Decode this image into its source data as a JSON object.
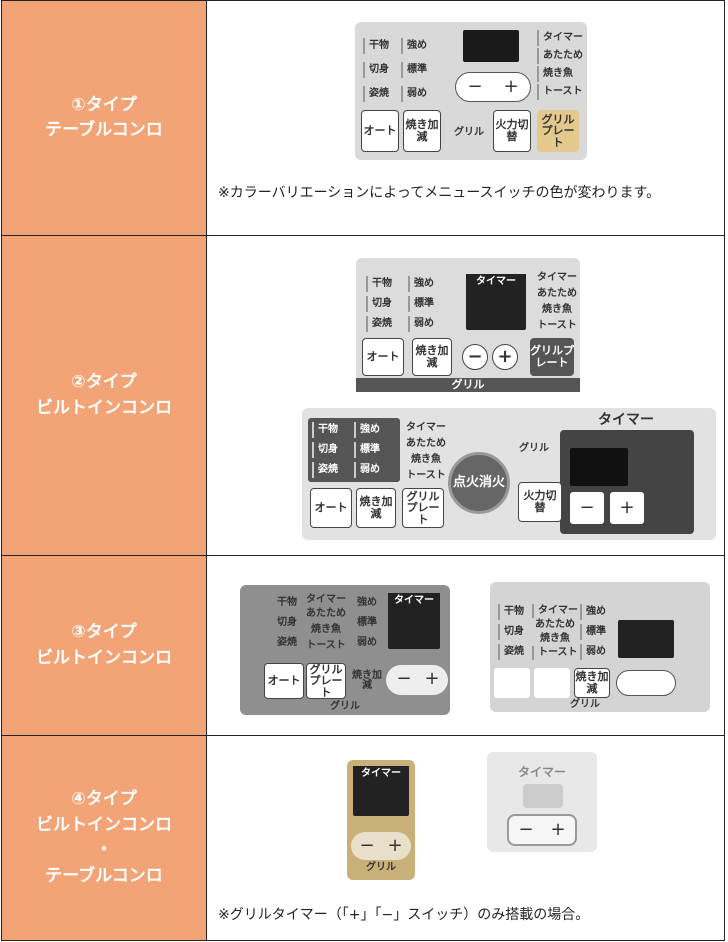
{
  "rows": [
    {
      "label": [
        "①タイプ",
        "テーブルコンロ"
      ],
      "note": "※カラーバリエーションによってメニュースイッチの色が変わります。",
      "panels": [
        {
          "texts": [
            "干物",
            "強め",
            "切身",
            "標準",
            "姿焼",
            "弱め",
            "タイマー",
            "あたため",
            "焼き魚",
            "トースト",
            "−",
            "+",
            "オート",
            "焼き加減",
            "グリル",
            "火力切替",
            "グリルプレート"
          ]
        }
      ]
    },
    {
      "label": [
        "②タイプ",
        "ビルトインコンロ"
      ],
      "panels": [
        {
          "texts": [
            "干物",
            "強め",
            "切身",
            "標準",
            "姿焼",
            "弱め",
            "タイマー",
            "タイマー",
            "あたため",
            "焼き魚",
            "トースト",
            "オート",
            "焼き加減",
            "−",
            "+",
            "グリルプレート",
            "グリル"
          ]
        },
        {
          "texts": [
            "干物",
            "強め",
            "切身",
            "標準",
            "姿焼",
            "弱め",
            "タイマー",
            "あたため",
            "焼き魚",
            "トースト",
            "点火消火",
            "グリル",
            "火力切替",
            "タイマー",
            "オート",
            "焼き加減",
            "グリルプレート",
            "−",
            "+"
          ]
        }
      ]
    },
    {
      "label": [
        "③タイプ",
        "ビルトインコンロ"
      ],
      "panels": [
        {
          "texts": [
            "干物",
            "タイマー",
            "強め",
            "切身",
            "あたため",
            "標準",
            "姿焼",
            "焼き魚",
            "弱め",
            "トースト",
            "タイマー",
            "オート",
            "グリルプレート",
            "焼き加減",
            "−",
            "+",
            "グリル"
          ]
        },
        {
          "texts": [
            "干物",
            "タイマー",
            "強め",
            "切身",
            "あたため",
            "標準",
            "焼き魚",
            "姿焼",
            "トースト",
            "弱め",
            "焼き加減",
            "グリル"
          ]
        }
      ]
    },
    {
      "label": [
        "④タイプ",
        "ビルトインコンロ",
        "・",
        "テーブルコンロ"
      ],
      "note": "※グリルタイマー（「+」「−」スイッチ）のみ搭載の場合。",
      "panels": [
        {
          "texts": [
            "タイマー",
            "−",
            "+",
            "グリル"
          ]
        },
        {
          "texts": [
            "タイマー",
            "−",
            "+"
          ]
        }
      ]
    }
  ]
}
